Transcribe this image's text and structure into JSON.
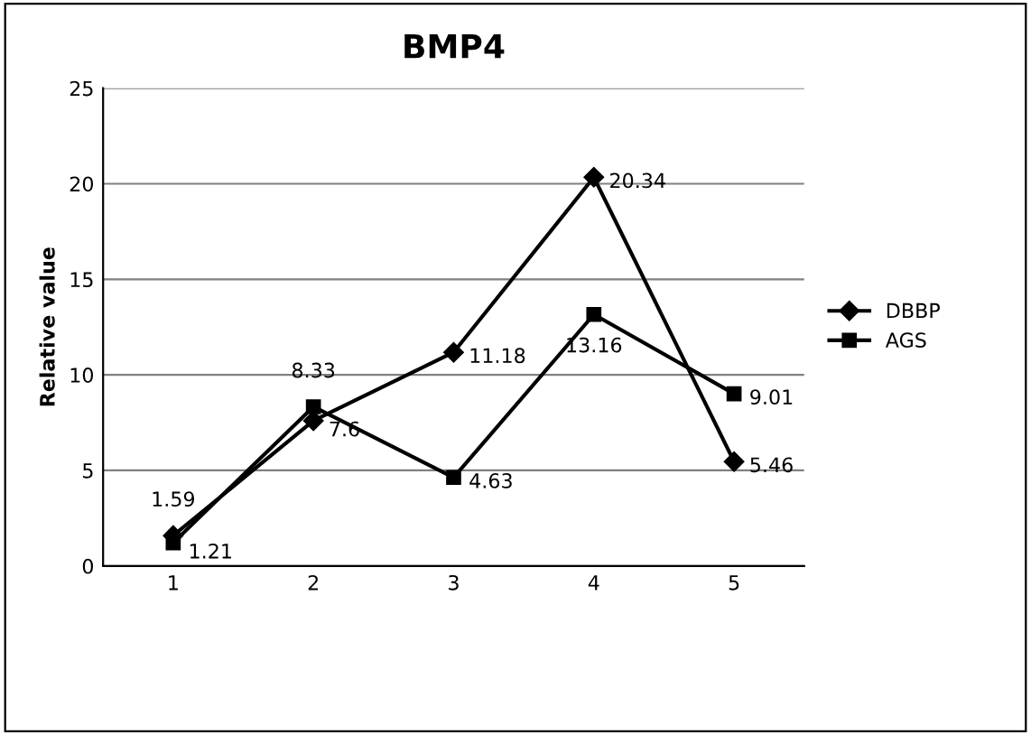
{
  "chart_data": {
    "type": "line",
    "title": "BMP4",
    "ylabel": "Relative value",
    "categories": [
      "1",
      "2",
      "3",
      "4",
      "5"
    ],
    "series": [
      {
        "name": "DBBP",
        "color": "#000000",
        "marker": "diamond",
        "values": [
          1.59,
          7.6,
          11.18,
          20.34,
          5.46
        ]
      },
      {
        "name": "AGS",
        "color": "#000000",
        "marker": "square",
        "values": [
          1.21,
          8.33,
          4.63,
          13.16,
          9.01
        ]
      }
    ],
    "ylim": [
      0,
      25
    ],
    "yticks": [
      0,
      5,
      10,
      15,
      20,
      25
    ],
    "grid": "y",
    "legend": "right",
    "data_labels": true,
    "line_style": "solid"
  }
}
